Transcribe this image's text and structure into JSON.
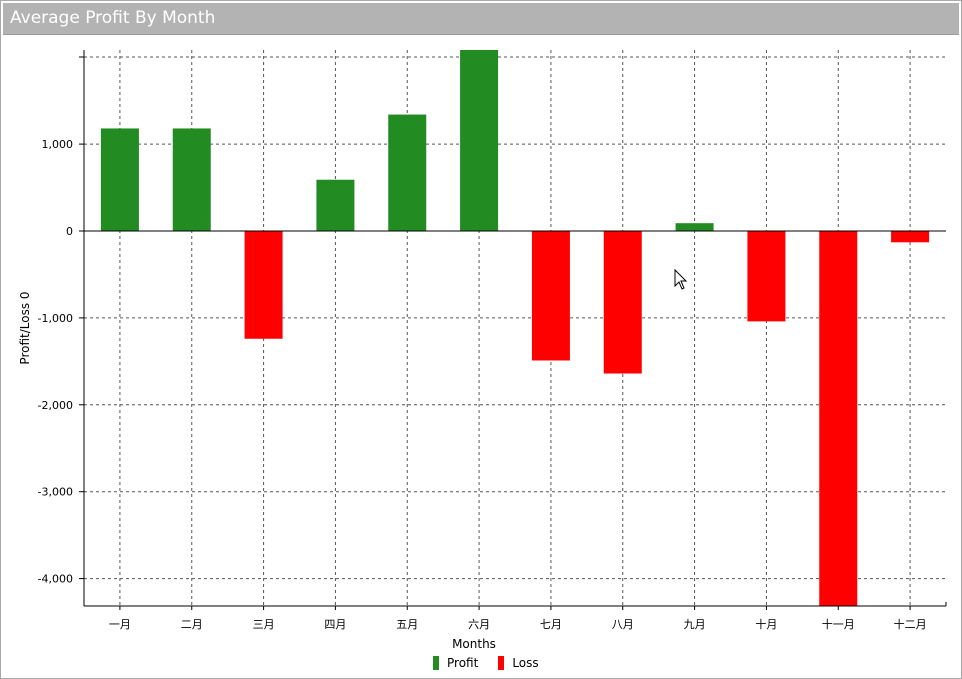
{
  "window": {
    "title": "Average Profit By Month"
  },
  "colors": {
    "profit": "#228b22",
    "loss": "#ff0000",
    "titlebar": "#b3b3b3"
  },
  "chart_data": {
    "type": "bar",
    "title": "Average Profit By Month",
    "xlabel": "Months",
    "ylabel": "Profit/Loss 0",
    "categories": [
      "一月",
      "二月",
      "三月",
      "四月",
      "五月",
      "六月",
      "七月",
      "八月",
      "九月",
      "十月",
      "十一月",
      "十二月"
    ],
    "values": [
      1180,
      1180,
      -1240,
      590,
      1340,
      2090,
      -1490,
      -1640,
      90,
      -1040,
      -4330,
      -130
    ],
    "yticks": [
      1000,
      0,
      -1000,
      -2000,
      -3000,
      -4000
    ],
    "ytick_labels": [
      "1,000",
      "0",
      "-1,000",
      "-2,000",
      "-3,000",
      "-4,000"
    ],
    "ylim": [
      -4320,
      2010
    ],
    "grid": true,
    "series": [
      {
        "name": "Profit",
        "color": "#228b22"
      },
      {
        "name": "Loss",
        "color": "#ff0000"
      }
    ],
    "legend_position": "bottom-center"
  }
}
